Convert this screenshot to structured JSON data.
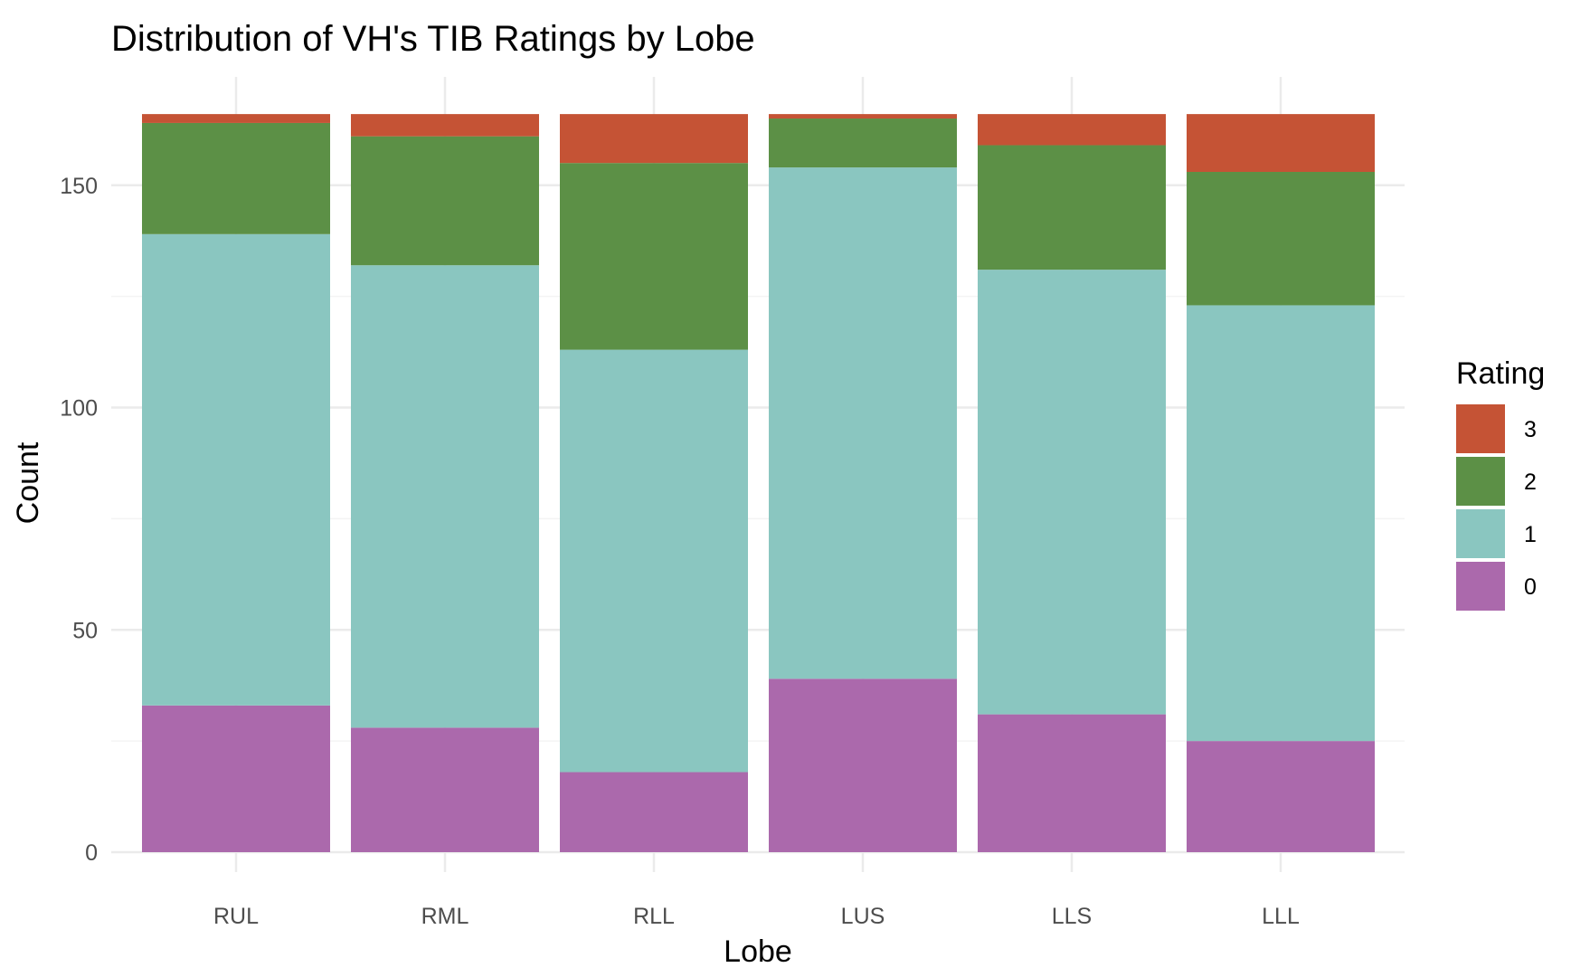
{
  "chart_data": {
    "type": "bar",
    "stacked": true,
    "title": "Distribution of VH's TIB Ratings by Lobe",
    "xlabel": "Lobe",
    "ylabel": "Count",
    "ylim": [
      0,
      166
    ],
    "yticks": [
      0,
      50,
      100,
      150
    ],
    "grid": true,
    "legend": {
      "title": "Rating",
      "placement": "right",
      "order": [
        "3",
        "2",
        "1",
        "0"
      ]
    },
    "categories": [
      "RUL",
      "RML",
      "RLL",
      "LUS",
      "LLS",
      "LLL"
    ],
    "series": [
      {
        "name": "0",
        "color": "#ab69ac",
        "values": [
          33,
          28,
          18,
          39,
          31,
          25
        ]
      },
      {
        "name": "1",
        "color": "#8ac6c0",
        "values": [
          106,
          104,
          95,
          115,
          100,
          98
        ]
      },
      {
        "name": "2",
        "color": "#5c9046",
        "values": [
          25,
          29,
          42,
          11,
          28,
          30
        ]
      },
      {
        "name": "3",
        "color": "#c55335",
        "values": [
          2,
          5,
          11,
          1,
          7,
          13
        ]
      }
    ]
  }
}
